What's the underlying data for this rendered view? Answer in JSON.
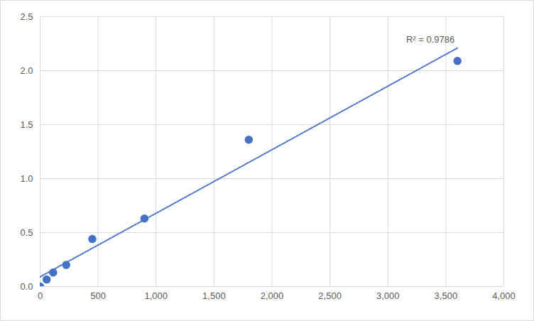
{
  "chart_data": {
    "type": "scatter",
    "x": [
      0,
      56.25,
      112.5,
      225,
      450,
      900,
      1800,
      3600
    ],
    "values": [
      0,
      0.065,
      0.13,
      0.2,
      0.44,
      0.63,
      1.36,
      2.09
    ],
    "color": "#4472c4",
    "marker": "circle",
    "trendline": {
      "x": [
        0,
        3600
      ],
      "values": [
        0.09,
        2.21
      ],
      "line_style": "dotted",
      "color": "#4472c4"
    },
    "annotations": [
      {
        "text": "R² = 0.9786"
      }
    ],
    "xlim": [
      0,
      4000
    ],
    "xticks": [
      0,
      500,
      1000,
      1500,
      2000,
      2500,
      3000,
      3500,
      4000
    ],
    "ylim": [
      0,
      2.5
    ],
    "yticks": [
      0,
      0.5,
      1,
      1.5,
      2,
      2.5
    ],
    "grid": true
  }
}
